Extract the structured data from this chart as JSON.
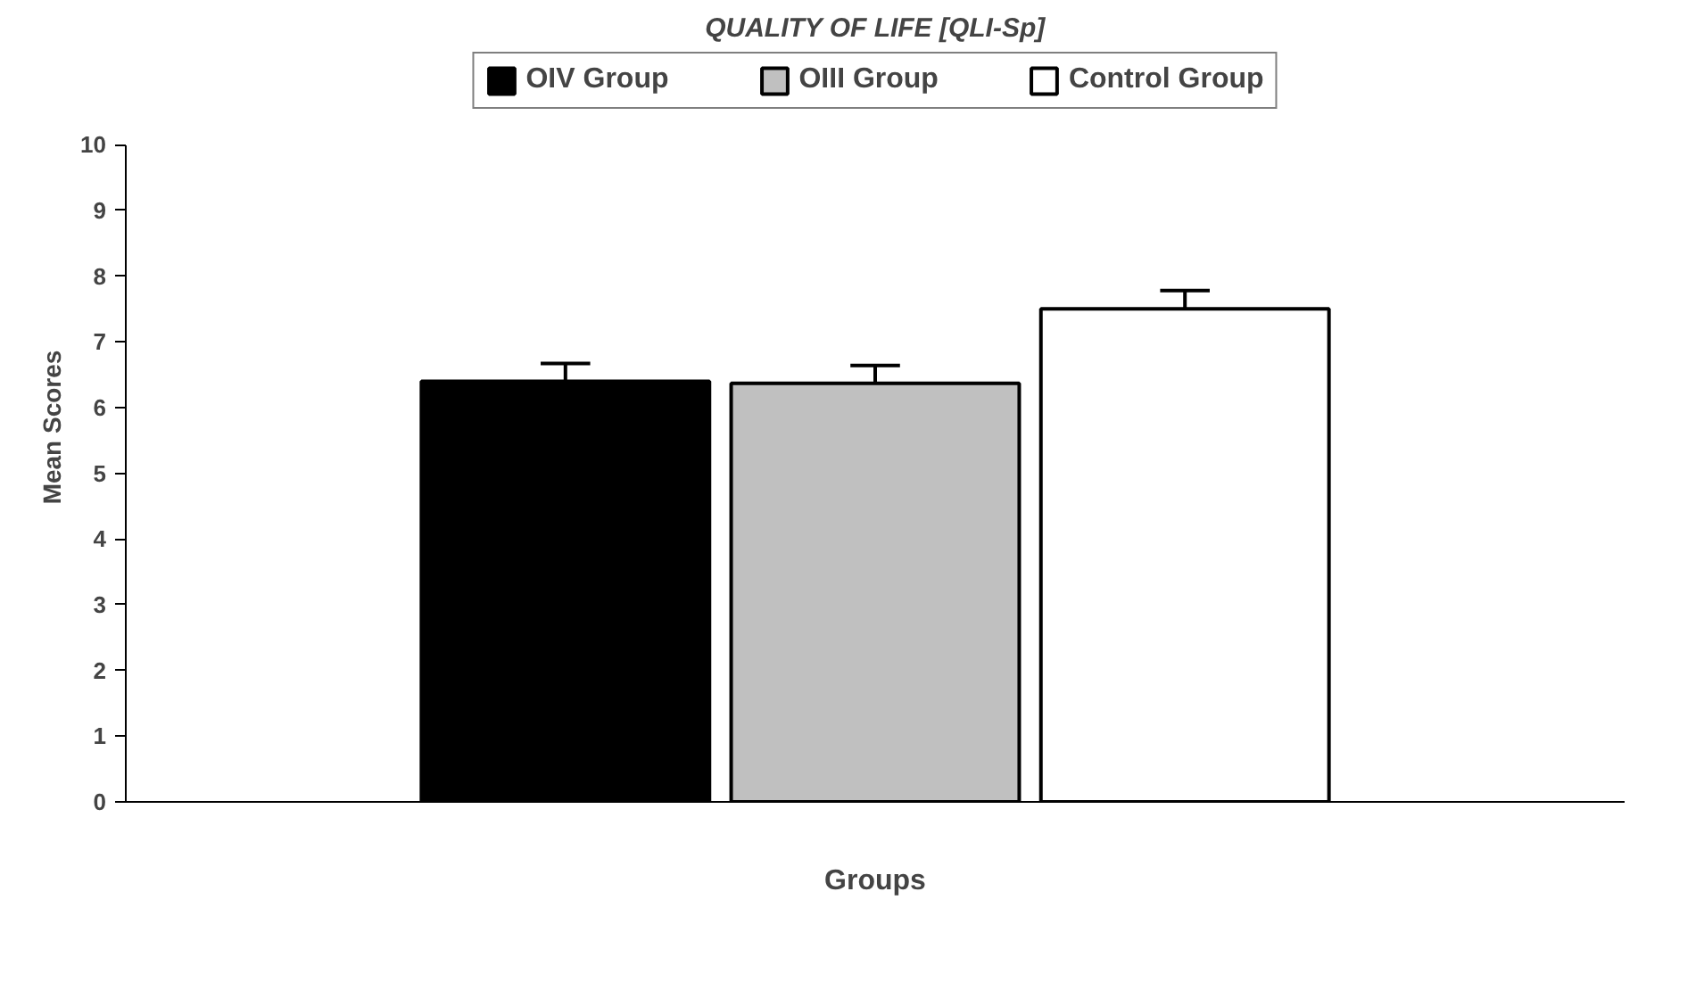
{
  "chart_data": {
    "type": "bar",
    "title": "QUALITY OF LIFE [QLI-Sp]",
    "xlabel": "Groups",
    "ylabel": "Mean Scores",
    "categories": [
      null
    ],
    "series": [
      {
        "name": "OIV Group",
        "color": "#000000",
        "values": [
          6.4
        ],
        "errors": [
          [
            6.4,
            6.67
          ]
        ]
      },
      {
        "name": "OIII Group",
        "color": "#c0c0c0",
        "values": [
          6.37
        ],
        "errors": [
          [
            6.37,
            6.64
          ]
        ]
      },
      {
        "name": "Control Group",
        "color": "#ffffff",
        "values": [
          7.5
        ],
        "errors": [
          [
            7.5,
            7.78
          ]
        ]
      }
    ],
    "ylim": [
      0,
      10
    ],
    "yticks": [
      0,
      1,
      2,
      3,
      4,
      5,
      6,
      7,
      8,
      9,
      10
    ],
    "grid": false,
    "legend": "top"
  }
}
